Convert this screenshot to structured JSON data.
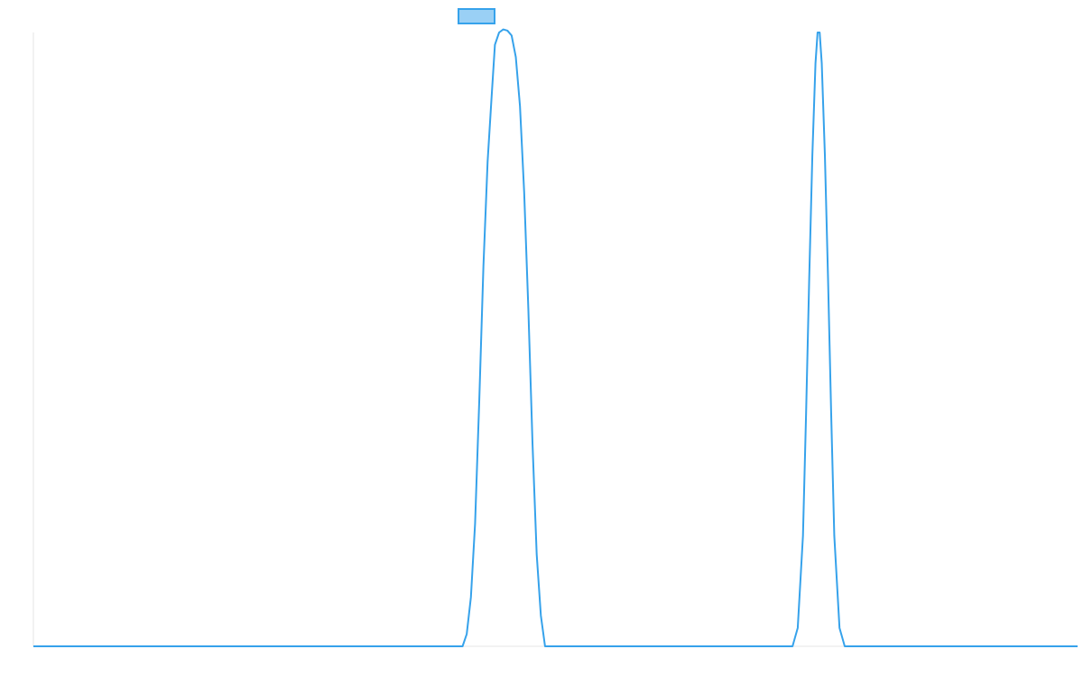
{
  "colors": {
    "series_stroke": "#36a2eb",
    "legend_fill": "#9ad0f5",
    "axis_line": "#e6e6e6",
    "background": "#ffffff"
  },
  "chart_data": {
    "type": "line",
    "title": "",
    "xlabel": "",
    "ylabel": "",
    "grid": false,
    "legend": {
      "position": "top-center",
      "entries": [
        {
          "label": "",
          "color": "#36a2eb"
        }
      ]
    },
    "xlim": [
      0,
      100
    ],
    "ylim": [
      0,
      100
    ],
    "series": [
      {
        "values": [
          [
            0,
            0
          ],
          [
            41.1,
            0
          ],
          [
            41.5,
            2
          ],
          [
            41.9,
            8
          ],
          [
            42.3,
            20
          ],
          [
            42.7,
            40
          ],
          [
            43.1,
            62
          ],
          [
            43.5,
            79
          ],
          [
            43.9,
            90
          ],
          [
            44.2,
            98
          ],
          [
            44.6,
            100
          ],
          [
            45.0,
            100.5
          ],
          [
            45.4,
            100.3
          ],
          [
            45.8,
            99.5
          ],
          [
            46.2,
            96
          ],
          [
            46.6,
            88
          ],
          [
            47.0,
            74
          ],
          [
            47.4,
            55
          ],
          [
            47.8,
            33
          ],
          [
            48.2,
            15
          ],
          [
            48.6,
            5
          ],
          [
            49.0,
            0
          ],
          [
            72.7,
            0
          ],
          [
            73.2,
            3
          ],
          [
            73.7,
            18
          ],
          [
            74.0,
            38
          ],
          [
            74.3,
            60
          ],
          [
            74.6,
            80
          ],
          [
            74.9,
            95
          ],
          [
            75.1,
            100
          ],
          [
            75.3,
            100
          ],
          [
            75.5,
            95
          ],
          [
            75.8,
            80
          ],
          [
            76.1,
            60
          ],
          [
            76.4,
            38
          ],
          [
            76.7,
            18
          ],
          [
            77.2,
            3
          ],
          [
            77.7,
            0
          ],
          [
            100,
            0
          ]
        ]
      }
    ]
  }
}
